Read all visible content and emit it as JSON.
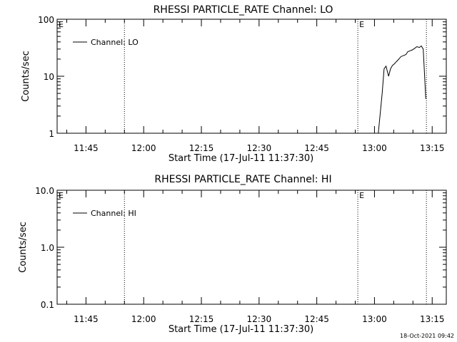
{
  "chart_data": [
    {
      "type": "line",
      "title": "RHESSI PARTICLE_RATE Channel: LO",
      "xlabel": "Start Time (17-Jul-11 11:37:30)",
      "ylabel": "Counts/sec",
      "y_scale": "log",
      "ylim": [
        1,
        100
      ],
      "xlim": [
        "11:37:30",
        "13:18:40"
      ],
      "y_ticks": [
        "1",
        "10",
        "100"
      ],
      "x_ticks": [
        "11:45",
        "12:00",
        "12:15",
        "12:30",
        "12:45",
        "13:00",
        "13:15"
      ],
      "legend": {
        "label": "Channel: LO",
        "placement": "top-left"
      },
      "grid": false,
      "markers": [
        {
          "label": "E",
          "time": "11:37:30",
          "line": false
        },
        {
          "time": "11:55:00",
          "label": "",
          "line": true
        },
        {
          "label": "E",
          "time": "12:55:40",
          "line": true
        },
        {
          "time": "13:13:30",
          "label": "",
          "line": true
        }
      ],
      "series": [
        {
          "name": "Channel: LO",
          "x": [
            "13:01:00",
            "13:02:00",
            "13:02:30",
            "13:03:00",
            "13:03:40",
            "13:04:10",
            "13:04:40",
            "13:05:10",
            "13:05:40",
            "13:06:20",
            "13:06:50",
            "13:07:30",
            "13:08:10",
            "13:08:40",
            "13:09:20",
            "13:09:50",
            "13:10:30",
            "13:11:00",
            "13:11:40",
            "13:12:10",
            "13:12:40",
            "13:13:20"
          ],
          "y": [
            1.0,
            5.0,
            13.5,
            15.0,
            10.0,
            13.5,
            15.5,
            16.5,
            18.0,
            20.0,
            22.0,
            23.0,
            24.0,
            27.0,
            28.0,
            29.0,
            31.0,
            33.0,
            32.0,
            34.0,
            30.0,
            4.0
          ]
        }
      ]
    },
    {
      "type": "line",
      "title": "RHESSI PARTICLE_RATE Channel: HI",
      "xlabel": "Start Time (17-Jul-11 11:37:30)",
      "ylabel": "Counts/sec",
      "y_scale": "log",
      "ylim": [
        0.1,
        10
      ],
      "xlim": [
        "11:37:30",
        "13:18:40"
      ],
      "y_ticks": [
        "0.1",
        "1.0",
        "10.0"
      ],
      "x_ticks": [
        "11:45",
        "12:00",
        "12:15",
        "12:30",
        "12:45",
        "13:00",
        "13:15"
      ],
      "legend": {
        "label": "Channel: HI",
        "placement": "top-left"
      },
      "grid": false,
      "markers": [
        {
          "label": "E",
          "time": "11:37:30",
          "line": false
        },
        {
          "time": "11:55:00",
          "label": "",
          "line": true
        },
        {
          "label": "E",
          "time": "12:55:40",
          "line": true
        },
        {
          "time": "13:13:30",
          "label": "",
          "line": true
        }
      ],
      "series": [
        {
          "name": "Channel: HI",
          "x": [],
          "y": []
        }
      ]
    }
  ],
  "footer": {
    "timestamp": "18-Oct-2021 09:42"
  }
}
